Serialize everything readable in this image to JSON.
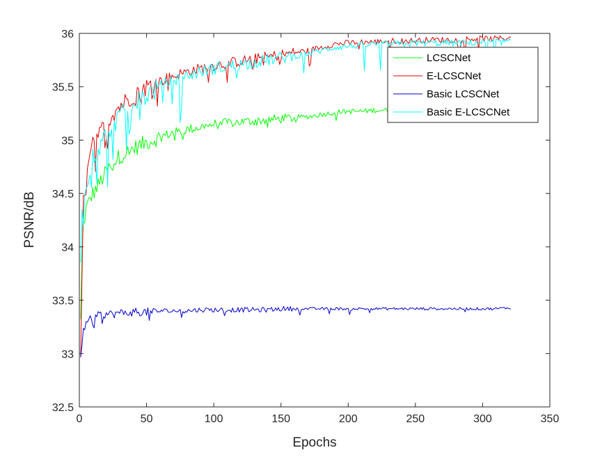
{
  "chart_data": {
    "type": "line",
    "title": "",
    "xlabel": "Epochs",
    "ylabel": "PSNR/dB",
    "xlim": [
      0,
      350
    ],
    "ylim": [
      32.5,
      36
    ],
    "xticks": [
      0,
      50,
      100,
      150,
      200,
      250,
      300,
      350
    ],
    "yticks": [
      32.5,
      33,
      33.5,
      34,
      34.5,
      35,
      35.5,
      36
    ],
    "xtick_labels": [
      "0",
      "50",
      "100",
      "150",
      "200",
      "250",
      "300",
      "350"
    ],
    "ytick_labels": [
      "32.5",
      "33",
      "33.5",
      "34",
      "34.5",
      "35",
      "35.5",
      "36"
    ],
    "grid": false,
    "legend_position": "top-right",
    "series": [
      {
        "name": "LCSCNet",
        "color": "#00ff00",
        "x": [
          1,
          2,
          3,
          5,
          8,
          10,
          13,
          16,
          20,
          25,
          30,
          35,
          40,
          45,
          50,
          55,
          60,
          65,
          70,
          75,
          80,
          90,
          100,
          110,
          120,
          130,
          140,
          150,
          160,
          170,
          180,
          190,
          200,
          210,
          220,
          230,
          240,
          250,
          260,
          270,
          280,
          290,
          300,
          310,
          321
        ],
        "y": [
          33.3,
          33.9,
          34.2,
          34.35,
          34.45,
          34.5,
          34.55,
          34.62,
          34.7,
          34.78,
          34.85,
          34.88,
          34.92,
          34.95,
          34.98,
          35.0,
          35.03,
          35.05,
          35.07,
          35.08,
          35.1,
          35.12,
          35.15,
          35.16,
          35.17,
          35.18,
          35.19,
          35.2,
          35.21,
          35.22,
          35.24,
          35.26,
          35.27,
          35.27,
          35.28,
          35.28,
          35.29,
          35.29,
          35.29,
          35.3,
          35.3,
          35.3,
          35.31,
          35.31,
          35.31
        ]
      },
      {
        "name": "E-LCSCNet",
        "color": "#e00000",
        "x": [
          1,
          2,
          3,
          5,
          8,
          10,
          13,
          16,
          20,
          25,
          30,
          35,
          40,
          45,
          50,
          55,
          60,
          65,
          70,
          75,
          80,
          90,
          100,
          110,
          120,
          130,
          140,
          150,
          160,
          170,
          180,
          190,
          200,
          210,
          220,
          230,
          240,
          250,
          260,
          270,
          280,
          290,
          300,
          310,
          321
        ],
        "y": [
          32.92,
          33.7,
          34.4,
          34.6,
          34.85,
          34.95,
          35.02,
          35.08,
          35.15,
          35.25,
          35.32,
          35.37,
          35.42,
          35.46,
          35.5,
          35.52,
          35.55,
          35.58,
          35.6,
          35.62,
          35.64,
          35.67,
          35.7,
          35.72,
          35.74,
          35.76,
          35.78,
          35.8,
          35.82,
          35.84,
          35.87,
          35.9,
          35.91,
          35.92,
          35.92,
          35.93,
          35.93,
          35.93,
          35.94,
          35.94,
          35.94,
          35.95,
          35.95,
          35.95,
          35.96
        ]
      },
      {
        "name": "Basic LCSCNet",
        "color": "#0000cc",
        "x": [
          1,
          2,
          3,
          5,
          8,
          10,
          13,
          16,
          20,
          25,
          30,
          35,
          40,
          45,
          50,
          55,
          60,
          65,
          70,
          75,
          80,
          90,
          100,
          110,
          120,
          130,
          140,
          150,
          160,
          170,
          180,
          190,
          200,
          210,
          220,
          230,
          240,
          250,
          260,
          270,
          280,
          290,
          300,
          310,
          321
        ],
        "y": [
          33.0,
          33.1,
          33.2,
          33.3,
          33.32,
          33.34,
          33.35,
          33.36,
          33.37,
          33.37,
          33.38,
          33.38,
          33.39,
          33.39,
          33.39,
          33.39,
          33.4,
          33.4,
          33.4,
          33.4,
          33.4,
          33.41,
          33.41,
          33.41,
          33.41,
          33.41,
          33.41,
          33.42,
          33.42,
          33.42,
          33.42,
          33.42,
          33.42,
          33.42,
          33.42,
          33.42,
          33.42,
          33.42,
          33.42,
          33.42,
          33.42,
          33.42,
          33.42,
          33.42,
          33.43
        ]
      },
      {
        "name": "Basic E-LCSCNet",
        "color": "#00ffff",
        "x": [
          1,
          2,
          3,
          5,
          8,
          10,
          13,
          16,
          20,
          25,
          30,
          35,
          40,
          45,
          50,
          55,
          60,
          65,
          70,
          75,
          80,
          90,
          100,
          110,
          120,
          130,
          140,
          150,
          160,
          170,
          180,
          190,
          200,
          210,
          220,
          230,
          240,
          250,
          260,
          270,
          280,
          290,
          300,
          310,
          321
        ],
        "y": [
          33.8,
          34.3,
          34.5,
          34.6,
          34.75,
          34.85,
          34.9,
          34.98,
          35.05,
          35.15,
          35.22,
          35.28,
          35.33,
          35.38,
          35.42,
          35.46,
          35.5,
          35.53,
          35.56,
          35.58,
          35.6,
          35.64,
          35.67,
          35.69,
          35.71,
          35.73,
          35.75,
          35.77,
          35.79,
          35.81,
          35.84,
          35.87,
          35.88,
          35.89,
          35.9,
          35.9,
          35.9,
          35.91,
          35.91,
          35.91,
          35.91,
          35.91,
          35.92,
          35.92,
          35.92
        ]
      }
    ]
  }
}
